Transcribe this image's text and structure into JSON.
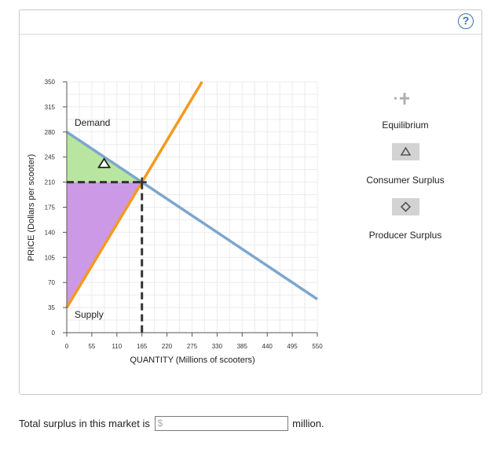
{
  "chart_data": {
    "type": "line",
    "xlabel": "QUANTITY (Millions of scooters)",
    "ylabel": "PRICE (Dollars per scooter)",
    "xlim": [
      0,
      550
    ],
    "ylim": [
      0,
      350
    ],
    "x_ticks": [
      "0",
      "55",
      "110",
      "165",
      "220",
      "275",
      "330",
      "385",
      "440",
      "495",
      "550"
    ],
    "y_ticks": [
      "0",
      "35",
      "70",
      "105",
      "140",
      "175",
      "210",
      "245",
      "280",
      "315",
      "350"
    ],
    "grid": true,
    "series": [
      {
        "name": "Demand",
        "color": "#7ea6cc",
        "points": [
          [
            0,
            280
          ],
          [
            550,
            46.7
          ]
        ]
      },
      {
        "name": "Supply",
        "color": "#f39a1e",
        "points": [
          [
            0,
            35
          ],
          [
            297,
            350
          ]
        ]
      }
    ],
    "equilibrium": {
      "quantity": 165,
      "price": 210
    },
    "consumer_surplus_marker": {
      "x": 82,
      "y": 236
    },
    "shaded_regions": [
      {
        "name": "consumer-surplus",
        "color": "#b8e6a0",
        "points": [
          [
            0,
            280
          ],
          [
            0,
            210
          ],
          [
            165,
            210
          ]
        ]
      },
      {
        "name": "producer-surplus",
        "color": "#cc99e6",
        "points": [
          [
            0,
            210
          ],
          [
            0,
            35
          ],
          [
            165,
            210
          ]
        ]
      }
    ]
  },
  "toolbox": {
    "equilibrium_label": "Equilibrium",
    "consumer_surplus_label": "Consumer Surplus",
    "producer_surplus_label": "Producer Surplus"
  },
  "help": {
    "label": "?"
  },
  "question": {
    "prefix": "Total surplus in this market is",
    "currency": "$",
    "value": "",
    "suffix": "million."
  }
}
